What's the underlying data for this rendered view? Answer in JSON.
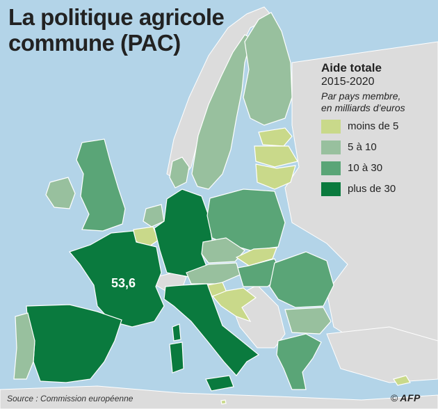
{
  "title": {
    "line1": "La politique agricole",
    "line2": "commune (PAC)"
  },
  "legend": {
    "title": "Aide totale",
    "period": "2015-2020",
    "subtitle_line1": "Par pays membre,",
    "subtitle_line2": "en milliards d’euros",
    "items": [
      {
        "label": "moins de 5",
        "color": "#c9d98a"
      },
      {
        "label": "5 à 10",
        "color": "#98c09e"
      },
      {
        "label": "10 à 30",
        "color": "#5aa577"
      },
      {
        "label": "plus de 30",
        "color": "#0a7a3e"
      }
    ]
  },
  "france_value": "53,6",
  "source": "Source : Commission européenne",
  "credit": {
    "symbol": "©",
    "logo": "AFP"
  },
  "colors": {
    "sea": "#b3d4e8",
    "non_eu": "#dcdcdc",
    "border": "#ffffff"
  }
}
